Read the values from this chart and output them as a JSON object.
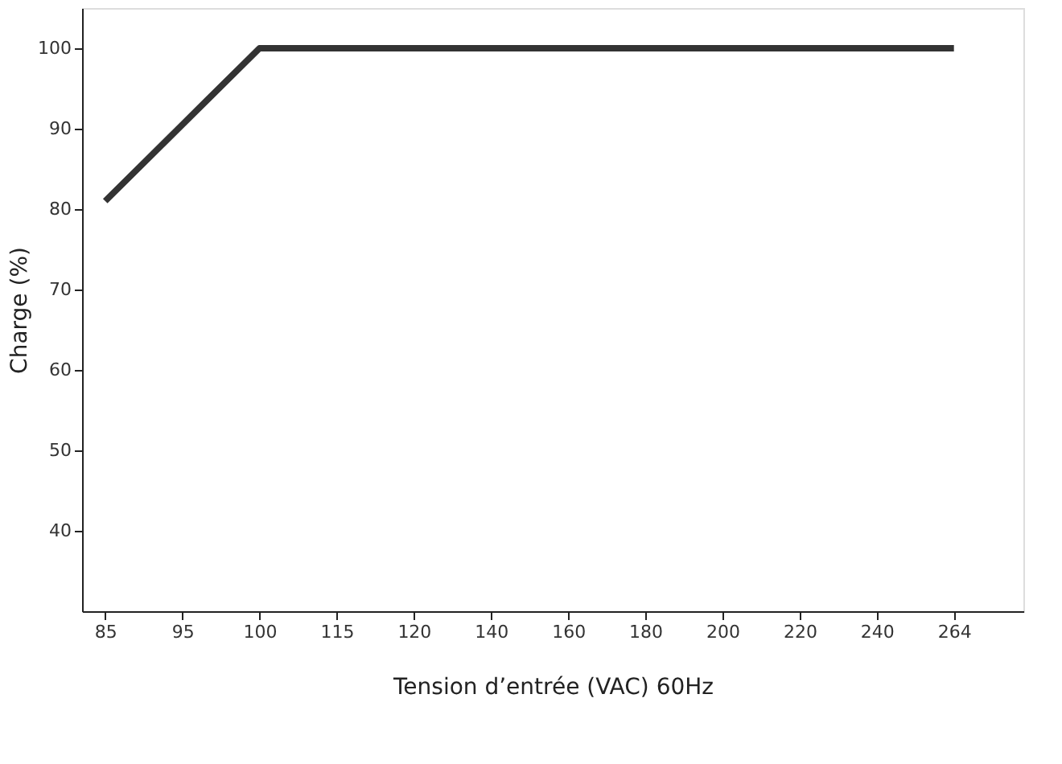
{
  "chart_data": {
    "type": "line",
    "xlabel": "Tension d’entrée (VAC) 60Hz",
    "ylabel": "Charge (%)",
    "categories": [
      "85",
      "95",
      "100",
      "115",
      "120",
      "140",
      "160",
      "180",
      "200",
      "220",
      "240",
      "264"
    ],
    "series": [
      {
        "color": "#333333",
        "values": [
          81,
          90.5,
          100,
          100,
          100,
          100,
          100,
          100,
          100,
          100,
          100,
          100
        ]
      }
    ],
    "ylim": [
      30,
      105
    ],
    "yticks": [
      40,
      50,
      60,
      70,
      80,
      90,
      100
    ],
    "grid": false,
    "marker": "none",
    "line_style": "solid"
  }
}
